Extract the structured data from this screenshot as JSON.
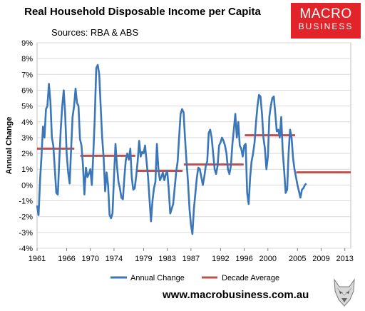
{
  "header": {
    "title": "Real Household Disposable Income per Capita",
    "source": "Sources: RBA & ABS"
  },
  "logo": {
    "line1": "MACRO",
    "line2": "BUSINESS",
    "color": "#e3232a"
  },
  "footer": {
    "url": "www.macrobusiness.com.au"
  },
  "chart_data": {
    "type": "line",
    "title": "Real Household Disposable Income per Capita",
    "xlabel": "",
    "ylabel": "Annual Change",
    "ylim": [
      -4,
      9
    ],
    "xlim": [
      1961,
      2014
    ],
    "y_ticks": [
      "9%",
      "8%",
      "7%",
      "6%",
      "5%",
      "4%",
      "3%",
      "2%",
      "1%",
      "0%",
      "-1%",
      "-2%",
      "-3%",
      "-4%"
    ],
    "x_ticks": [
      "1961",
      "1966",
      "1970",
      "1974",
      "1979",
      "1983",
      "1987",
      "1992",
      "1996",
      "2000",
      "2005",
      "2009",
      "2013"
    ],
    "grid": true,
    "legend_position": "bottom",
    "series": [
      {
        "name": "Annual Change",
        "color": "#3a76b8",
        "points": [
          [
            1961.0,
            -1.3
          ],
          [
            1961.25,
            -1.9
          ],
          [
            1961.5,
            0.3
          ],
          [
            1961.75,
            1.8
          ],
          [
            1962.0,
            3.7
          ],
          [
            1962.25,
            3.0
          ],
          [
            1962.5,
            4.8
          ],
          [
            1962.75,
            5.0
          ],
          [
            1963.0,
            6.4
          ],
          [
            1963.25,
            5.3
          ],
          [
            1963.5,
            3.0
          ],
          [
            1963.75,
            2.5
          ],
          [
            1964.0,
            1.0
          ],
          [
            1964.25,
            -0.5
          ],
          [
            1964.5,
            -0.6
          ],
          [
            1964.75,
            1.5
          ],
          [
            1965.0,
            3.5
          ],
          [
            1965.25,
            5.0
          ],
          [
            1965.5,
            6.0
          ],
          [
            1965.75,
            4.5
          ],
          [
            1966.0,
            2.0
          ],
          [
            1966.25,
            0.8
          ],
          [
            1966.5,
            0.1
          ],
          [
            1966.75,
            2.2
          ],
          [
            1967.0,
            4.3
          ],
          [
            1967.25,
            5.0
          ],
          [
            1967.5,
            6.1
          ],
          [
            1967.75,
            5.2
          ],
          [
            1968.0,
            5.0
          ],
          [
            1968.25,
            2.9
          ],
          [
            1968.5,
            2.5
          ],
          [
            1968.75,
            1.3
          ],
          [
            1969.0,
            -0.6
          ],
          [
            1969.25,
            1.1
          ],
          [
            1969.5,
            0.5
          ],
          [
            1969.75,
            0.7
          ],
          [
            1970.0,
            1.0
          ],
          [
            1970.25,
            0.0
          ],
          [
            1970.5,
            2.0
          ],
          [
            1970.75,
            4.2
          ],
          [
            1971.0,
            7.4
          ],
          [
            1971.25,
            7.6
          ],
          [
            1971.5,
            7.0
          ],
          [
            1971.75,
            5.0
          ],
          [
            1972.0,
            3.0
          ],
          [
            1972.25,
            1.7
          ],
          [
            1972.5,
            -0.4
          ],
          [
            1972.75,
            0.8
          ],
          [
            1973.0,
            0.0
          ],
          [
            1973.25,
            -1.9
          ],
          [
            1973.5,
            -2.1
          ],
          [
            1973.75,
            -1.8
          ],
          [
            1974.0,
            0.5
          ],
          [
            1974.25,
            2.6
          ],
          [
            1974.5,
            1.2
          ],
          [
            1974.75,
            0.2
          ],
          [
            1975.0,
            -0.2
          ],
          [
            1975.25,
            -0.8
          ],
          [
            1975.5,
            -0.9
          ],
          [
            1975.75,
            0.5
          ],
          [
            1976.0,
            1.6
          ],
          [
            1976.25,
            2.0
          ],
          [
            1976.5,
            1.6
          ],
          [
            1976.75,
            2.3
          ],
          [
            1977.0,
            0.5
          ],
          [
            1977.25,
            -0.3
          ],
          [
            1977.5,
            -0.2
          ],
          [
            1977.75,
            0.6
          ],
          [
            1978.0,
            1.5
          ],
          [
            1978.25,
            2.8
          ],
          [
            1978.5,
            1.8
          ],
          [
            1978.75,
            2.1
          ],
          [
            1979.0,
            2.0
          ],
          [
            1979.25,
            2.5
          ],
          [
            1979.5,
            1.5
          ],
          [
            1979.75,
            0.5
          ],
          [
            1980.0,
            -0.9
          ],
          [
            1980.25,
            -2.3
          ],
          [
            1980.5,
            -1.0
          ],
          [
            1980.75,
            -0.2
          ],
          [
            1981.0,
            0.2
          ],
          [
            1981.25,
            2.6
          ],
          [
            1981.5,
            1.0
          ],
          [
            1981.75,
            0.3
          ],
          [
            1982.0,
            0.5
          ],
          [
            1982.25,
            0.8
          ],
          [
            1982.5,
            0.3
          ],
          [
            1982.75,
            0.7
          ],
          [
            1983.0,
            0.9
          ],
          [
            1983.25,
            -0.3
          ],
          [
            1983.5,
            -1.8
          ],
          [
            1983.75,
            -1.5
          ],
          [
            1984.0,
            -1.2
          ],
          [
            1984.25,
            -0.2
          ],
          [
            1984.5,
            0.8
          ],
          [
            1984.75,
            1.5
          ],
          [
            1985.0,
            3.0
          ],
          [
            1985.25,
            4.5
          ],
          [
            1985.5,
            4.8
          ],
          [
            1985.75,
            4.6
          ],
          [
            1986.0,
            3.0
          ],
          [
            1986.25,
            1.5
          ],
          [
            1986.5,
            0.2
          ],
          [
            1986.75,
            -1.5
          ],
          [
            1987.0,
            -2.5
          ],
          [
            1987.25,
            -3.1
          ],
          [
            1987.5,
            -1.5
          ],
          [
            1987.75,
            -0.5
          ],
          [
            1988.0,
            0.5
          ],
          [
            1988.25,
            1.1
          ],
          [
            1988.5,
            1.0
          ],
          [
            1988.75,
            0.5
          ],
          [
            1989.0,
            0.0
          ],
          [
            1989.25,
            0.5
          ],
          [
            1989.5,
            1.2
          ],
          [
            1989.75,
            1.5
          ],
          [
            1990.0,
            3.3
          ],
          [
            1990.25,
            3.5
          ],
          [
            1990.5,
            3.0
          ],
          [
            1990.75,
            2.0
          ],
          [
            1991.0,
            1.0
          ],
          [
            1991.25,
            0.7
          ],
          [
            1991.5,
            1.2
          ],
          [
            1991.75,
            2.5
          ],
          [
            1992.0,
            2.7
          ],
          [
            1992.25,
            3.0
          ],
          [
            1992.5,
            2.8
          ],
          [
            1992.75,
            2.5
          ],
          [
            1993.0,
            2.0
          ],
          [
            1993.25,
            1.0
          ],
          [
            1993.5,
            0.7
          ],
          [
            1993.75,
            1.2
          ],
          [
            1994.0,
            2.6
          ],
          [
            1994.25,
            3.5
          ],
          [
            1994.5,
            4.5
          ],
          [
            1994.75,
            3.0
          ],
          [
            1995.0,
            4.0
          ],
          [
            1995.25,
            2.5
          ],
          [
            1995.5,
            2.3
          ],
          [
            1995.75,
            1.8
          ],
          [
            1996.0,
            2.5
          ],
          [
            1996.25,
            2.6
          ],
          [
            1996.5,
            -0.5
          ],
          [
            1996.75,
            -1.2
          ],
          [
            1997.0,
            0.5
          ],
          [
            1997.25,
            1.5
          ],
          [
            1997.5,
            2.0
          ],
          [
            1997.75,
            2.7
          ],
          [
            1998.0,
            4.0
          ],
          [
            1998.25,
            5.0
          ],
          [
            1998.5,
            5.7
          ],
          [
            1998.75,
            5.6
          ],
          [
            1999.0,
            4.5
          ],
          [
            1999.25,
            3.0
          ],
          [
            1999.5,
            2.3
          ],
          [
            1999.75,
            1.0
          ],
          [
            2000.0,
            1.8
          ],
          [
            2000.25,
            4.3
          ],
          [
            2000.5,
            5.0
          ],
          [
            2000.75,
            5.5
          ],
          [
            2001.0,
            5.6
          ],
          [
            2001.25,
            4.5
          ],
          [
            2001.5,
            3.4
          ],
          [
            2001.75,
            3.5
          ],
          [
            2002.0,
            3.0
          ],
          [
            2002.25,
            4.3
          ],
          [
            2002.5,
            2.2
          ],
          [
            2002.75,
            0.9
          ],
          [
            2003.0,
            -0.5
          ],
          [
            2003.25,
            -0.3
          ],
          [
            2003.5,
            2.0
          ],
          [
            2003.75,
            3.5
          ],
          [
            2004.0,
            3.0
          ],
          [
            2004.25,
            1.7
          ],
          [
            2004.5,
            1.0
          ],
          [
            2004.75,
            0.5
          ],
          [
            2005.0,
            0.0
          ],
          [
            2005.25,
            -0.4
          ],
          [
            2005.5,
            -0.8
          ],
          [
            2005.75,
            -0.3
          ],
          [
            2006.0,
            -0.2
          ],
          [
            2006.25,
            0.0
          ],
          [
            2006.5,
            0.1
          ]
        ]
      },
      {
        "name": "Decade Average",
        "color": "#c0504d",
        "segments": [
          {
            "x": [
              1961,
              1967.3
            ],
            "y": 2.3
          },
          {
            "x": [
              1968.3,
              1977.6
            ],
            "y": 1.85
          },
          {
            "x": [
              1977.9,
              1985.6
            ],
            "y": 0.9
          },
          {
            "x": [
              1985.8,
              1995.9
            ],
            "y": 1.3
          },
          {
            "x": [
              1996.1,
              2004.6
            ],
            "y": 3.15
          },
          {
            "x": [
              2004.8,
              2014.0
            ],
            "y": 0.8
          }
        ]
      }
    ]
  }
}
